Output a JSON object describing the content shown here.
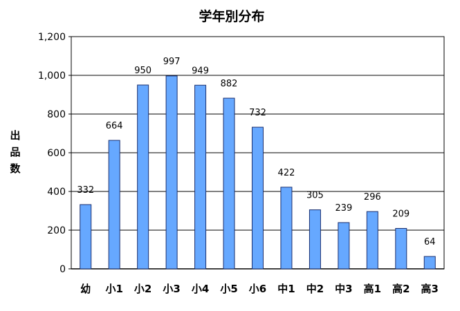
{
  "chart_data": {
    "type": "bar",
    "title": "学年別分布",
    "xlabel": "",
    "ylabel": "出品数",
    "ylim": [
      0,
      1200
    ],
    "yticks": [
      0,
      200,
      400,
      600,
      800,
      1000,
      1200
    ],
    "ytick_labels": [
      "0",
      "200",
      "400",
      "600",
      "800",
      "1,000",
      "1,200"
    ],
    "grid": true,
    "legend": "none",
    "categories": [
      "幼",
      "小1",
      "小2",
      "小3",
      "小4",
      "小5",
      "小6",
      "中1",
      "中2",
      "中3",
      "高1",
      "高2",
      "高3"
    ],
    "values": [
      332,
      664,
      950,
      997,
      949,
      882,
      732,
      422,
      305,
      239,
      296,
      209,
      64
    ],
    "data_labels": [
      "332",
      "664",
      "950",
      "997",
      "949",
      "882",
      "732",
      "422",
      "305",
      "239",
      "296",
      "209",
      "64"
    ],
    "bar_color": "#66a8ff",
    "bar_edge_color": "#1a2f6e"
  }
}
